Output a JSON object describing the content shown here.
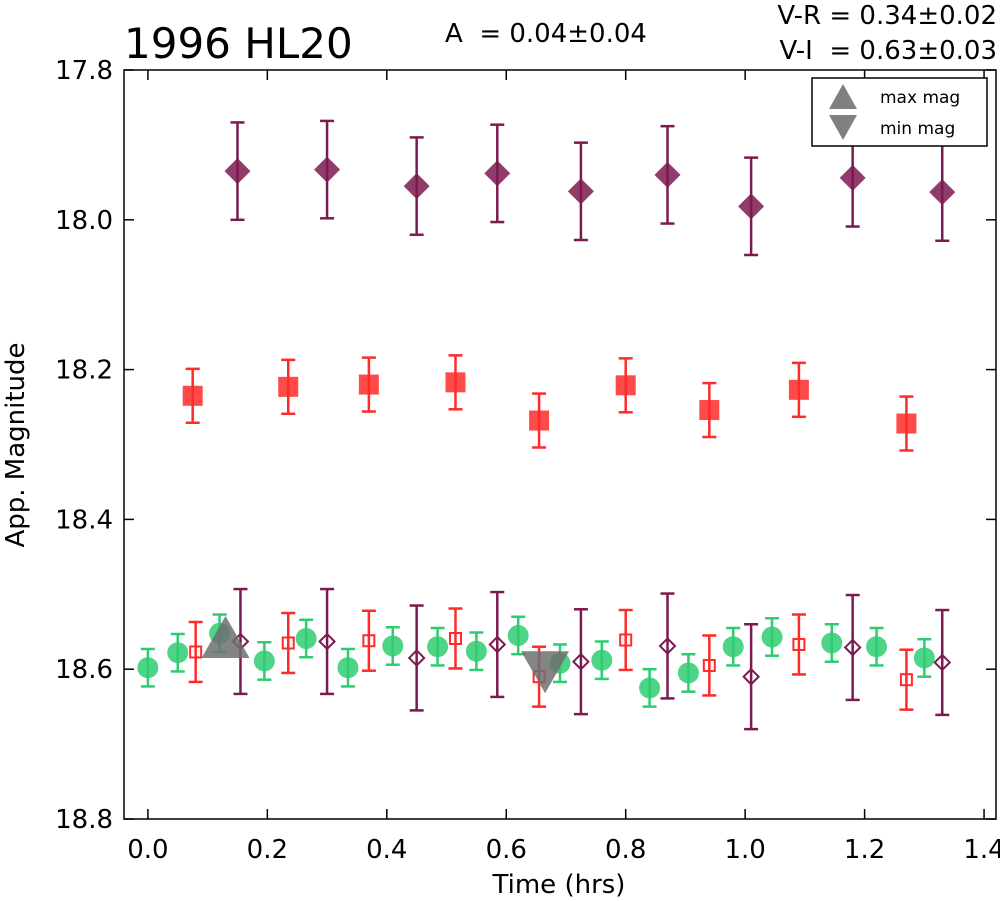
{
  "chart_data": {
    "type": "scatter",
    "title": "1996 HL20",
    "annotations": {
      "amplitude": "A  = 0.04±0.04",
      "v_r": "V-R = 0.34±0.02",
      "v_i": "V-I  = 0.63±0.03"
    },
    "xlabel": "Time (hrs)",
    "ylabel": "App. Magnitude",
    "xlim": [
      -0.04,
      1.42
    ],
    "ylim": [
      18.8,
      17.8
    ],
    "y_inverted": true,
    "x_ticks": [
      "0.0",
      "0.2",
      "0.4",
      "0.6",
      "0.8",
      "1.0",
      "1.2",
      "1.4"
    ],
    "y_ticks": [
      "17.8",
      "18.0",
      "18.2",
      "18.4",
      "18.6",
      "18.8"
    ],
    "grid": false,
    "legend_position": "top-right",
    "legend": [
      {
        "label": "max mag",
        "marker": "triangle-up",
        "color": "#808080"
      },
      {
        "label": "min mag",
        "marker": "triangle-down",
        "color": "#808080"
      }
    ],
    "series": [
      {
        "marker": "diamond",
        "color": "#7b1a50",
        "filled": true,
        "x": [
          0.15,
          0.3,
          0.45,
          0.585,
          0.725,
          0.87,
          1.01,
          1.18,
          1.33
        ],
        "y": [
          17.935,
          17.933,
          17.955,
          17.938,
          17.962,
          17.94,
          17.982,
          17.944,
          17.963
        ],
        "err": 0.065
      },
      {
        "marker": "square",
        "color": "#ff2a2a",
        "filled": true,
        "x": [
          0.075,
          0.235,
          0.37,
          0.515,
          0.655,
          0.8,
          0.94,
          1.09,
          1.27
        ],
        "y": [
          18.235,
          18.223,
          18.22,
          18.217,
          18.268,
          18.221,
          18.254,
          18.227,
          18.272
        ],
        "err": 0.036
      },
      {
        "marker": "circle",
        "color": "#2ecc71",
        "filled": true,
        "x": [
          0.0,
          0.05,
          0.12,
          0.195,
          0.265,
          0.335,
          0.41,
          0.485,
          0.55,
          0.62,
          0.69,
          0.76,
          0.84,
          0.905,
          0.98,
          1.045,
          1.145,
          1.22,
          1.3
        ],
        "y": [
          18.598,
          18.578,
          18.552,
          18.589,
          18.559,
          18.598,
          18.569,
          18.57,
          18.576,
          18.555,
          18.592,
          18.588,
          18.625,
          18.605,
          18.57,
          18.557,
          18.565,
          18.57,
          18.585
        ],
        "err": 0.025
      },
      {
        "marker": "square",
        "color": "#ff2a2a",
        "filled": false,
        "x": [
          0.08,
          0.235,
          0.37,
          0.515,
          0.655,
          0.8,
          0.94,
          1.09,
          1.27
        ],
        "y": [
          18.577,
          18.565,
          18.562,
          18.559,
          18.61,
          18.561,
          18.595,
          18.567,
          18.614
        ],
        "err": 0.04
      },
      {
        "marker": "diamond",
        "color": "#7b1a50",
        "filled": false,
        "x": [
          0.155,
          0.3,
          0.45,
          0.585,
          0.725,
          0.87,
          1.01,
          1.18,
          1.33
        ],
        "y": [
          18.563,
          18.563,
          18.585,
          18.567,
          18.59,
          18.569,
          18.61,
          18.571,
          18.591
        ],
        "err": 0.07
      }
    ],
    "markers": [
      {
        "label": "max mag",
        "x": 0.13,
        "y": 18.565
      },
      {
        "label": "min mag",
        "x": 0.665,
        "y": 18.596
      }
    ]
  }
}
